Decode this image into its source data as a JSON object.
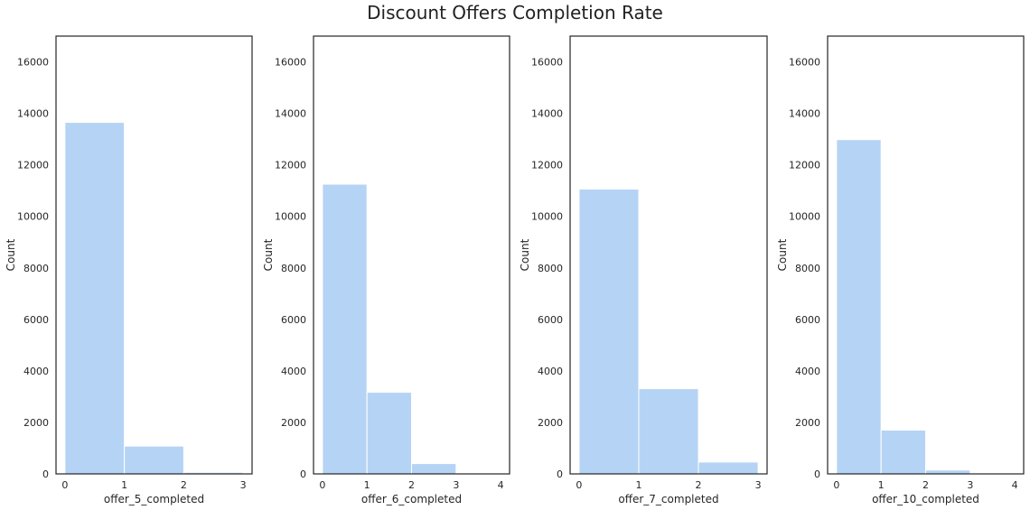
{
  "title": "Discount Offers Completion Rate",
  "chart_data": [
    {
      "type": "bar",
      "bins": [
        [
          0,
          1
        ],
        [
          1,
          2
        ],
        [
          2,
          3
        ]
      ],
      "values": [
        13650,
        1080,
        60
      ],
      "xticks": [
        0,
        1,
        2,
        3
      ],
      "xlim": [
        -0.15,
        3.15
      ],
      "ylim": [
        0,
        17000
      ],
      "yticks": [
        0,
        2000,
        4000,
        6000,
        8000,
        10000,
        12000,
        14000,
        16000
      ],
      "xlabel": "offer_5_completed",
      "ylabel": "Count",
      "bar_color": "#b5d3f5",
      "grid": false
    },
    {
      "type": "bar",
      "bins": [
        [
          0,
          1
        ],
        [
          1,
          2
        ],
        [
          2,
          3
        ],
        [
          3,
          4
        ]
      ],
      "values": [
        11250,
        3170,
        400,
        0
      ],
      "xticks": [
        0,
        1,
        2,
        3,
        4
      ],
      "xlim": [
        -0.2,
        4.2
      ],
      "ylim": [
        0,
        17000
      ],
      "yticks": [
        0,
        2000,
        4000,
        6000,
        8000,
        10000,
        12000,
        14000,
        16000
      ],
      "xlabel": "offer_6_completed",
      "ylabel": "Count",
      "bar_color": "#b5d3f5",
      "grid": false
    },
    {
      "type": "bar",
      "bins": [
        [
          0,
          1
        ],
        [
          1,
          2
        ],
        [
          2,
          3
        ]
      ],
      "values": [
        11060,
        3310,
        460
      ],
      "xticks": [
        0,
        1,
        2,
        3
      ],
      "xlim": [
        -0.15,
        3.15
      ],
      "ylim": [
        0,
        17000
      ],
      "yticks": [
        0,
        2000,
        4000,
        6000,
        8000,
        10000,
        12000,
        14000,
        16000
      ],
      "xlabel": "offer_7_completed",
      "ylabel": "Count",
      "bar_color": "#b5d3f5",
      "grid": false
    },
    {
      "type": "bar",
      "bins": [
        [
          0,
          1
        ],
        [
          1,
          2
        ],
        [
          2,
          3
        ],
        [
          3,
          4
        ]
      ],
      "values": [
        12980,
        1700,
        150,
        0
      ],
      "xticks": [
        0,
        1,
        2,
        3,
        4
      ],
      "xlim": [
        -0.2,
        4.2
      ],
      "ylim": [
        0,
        17000
      ],
      "yticks": [
        0,
        2000,
        4000,
        6000,
        8000,
        10000,
        12000,
        14000,
        16000
      ],
      "xlabel": "offer_10_completed",
      "ylabel": "Count",
      "bar_color": "#b5d3f5",
      "grid": false
    }
  ]
}
